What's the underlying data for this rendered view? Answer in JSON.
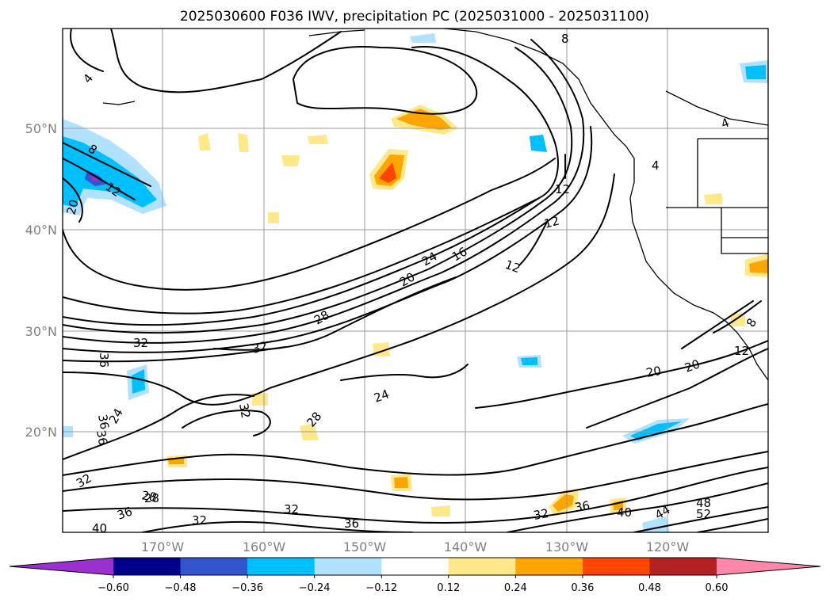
{
  "title": "2025030600 F036 IWV, precipitation PC (2025031000 - 2025031100)",
  "map": {
    "lat_labels": [
      "50°N",
      "40°N",
      "30°N",
      "20°N"
    ],
    "lon_labels": [
      "170°W",
      "160°W",
      "150°W",
      "140°W",
      "130°W",
      "120°W"
    ]
  },
  "contour_labels": [
    "4",
    "8",
    "12",
    "20",
    "36",
    "32",
    "32",
    "28",
    "24",
    "20",
    "24",
    "16",
    "12",
    "12",
    "12",
    "8",
    "4",
    "4",
    "8",
    "12",
    "20",
    "20",
    "28",
    "24",
    "28",
    "32",
    "36",
    "32",
    "36",
    "32",
    "36",
    "40",
    "32",
    "28",
    "36",
    "32",
    "36",
    "40",
    "44",
    "48",
    "52"
  ],
  "colorbar": {
    "ticks": [
      "−0.60",
      "−0.48",
      "−0.36",
      "−0.24",
      "−0.12",
      "0.12",
      "0.24",
      "0.36",
      "0.48",
      "0.60"
    ],
    "colors": [
      "#9b30d0",
      "#00008b",
      "#3355cc",
      "#00bfff",
      "#b0e2ff",
      "#ffffff",
      "#ffe88a",
      "#ffa500",
      "#ff4500",
      "#b22222",
      "#ff88aa"
    ]
  },
  "colors": {
    "land_line": "#000000",
    "grid": "#999999"
  }
}
